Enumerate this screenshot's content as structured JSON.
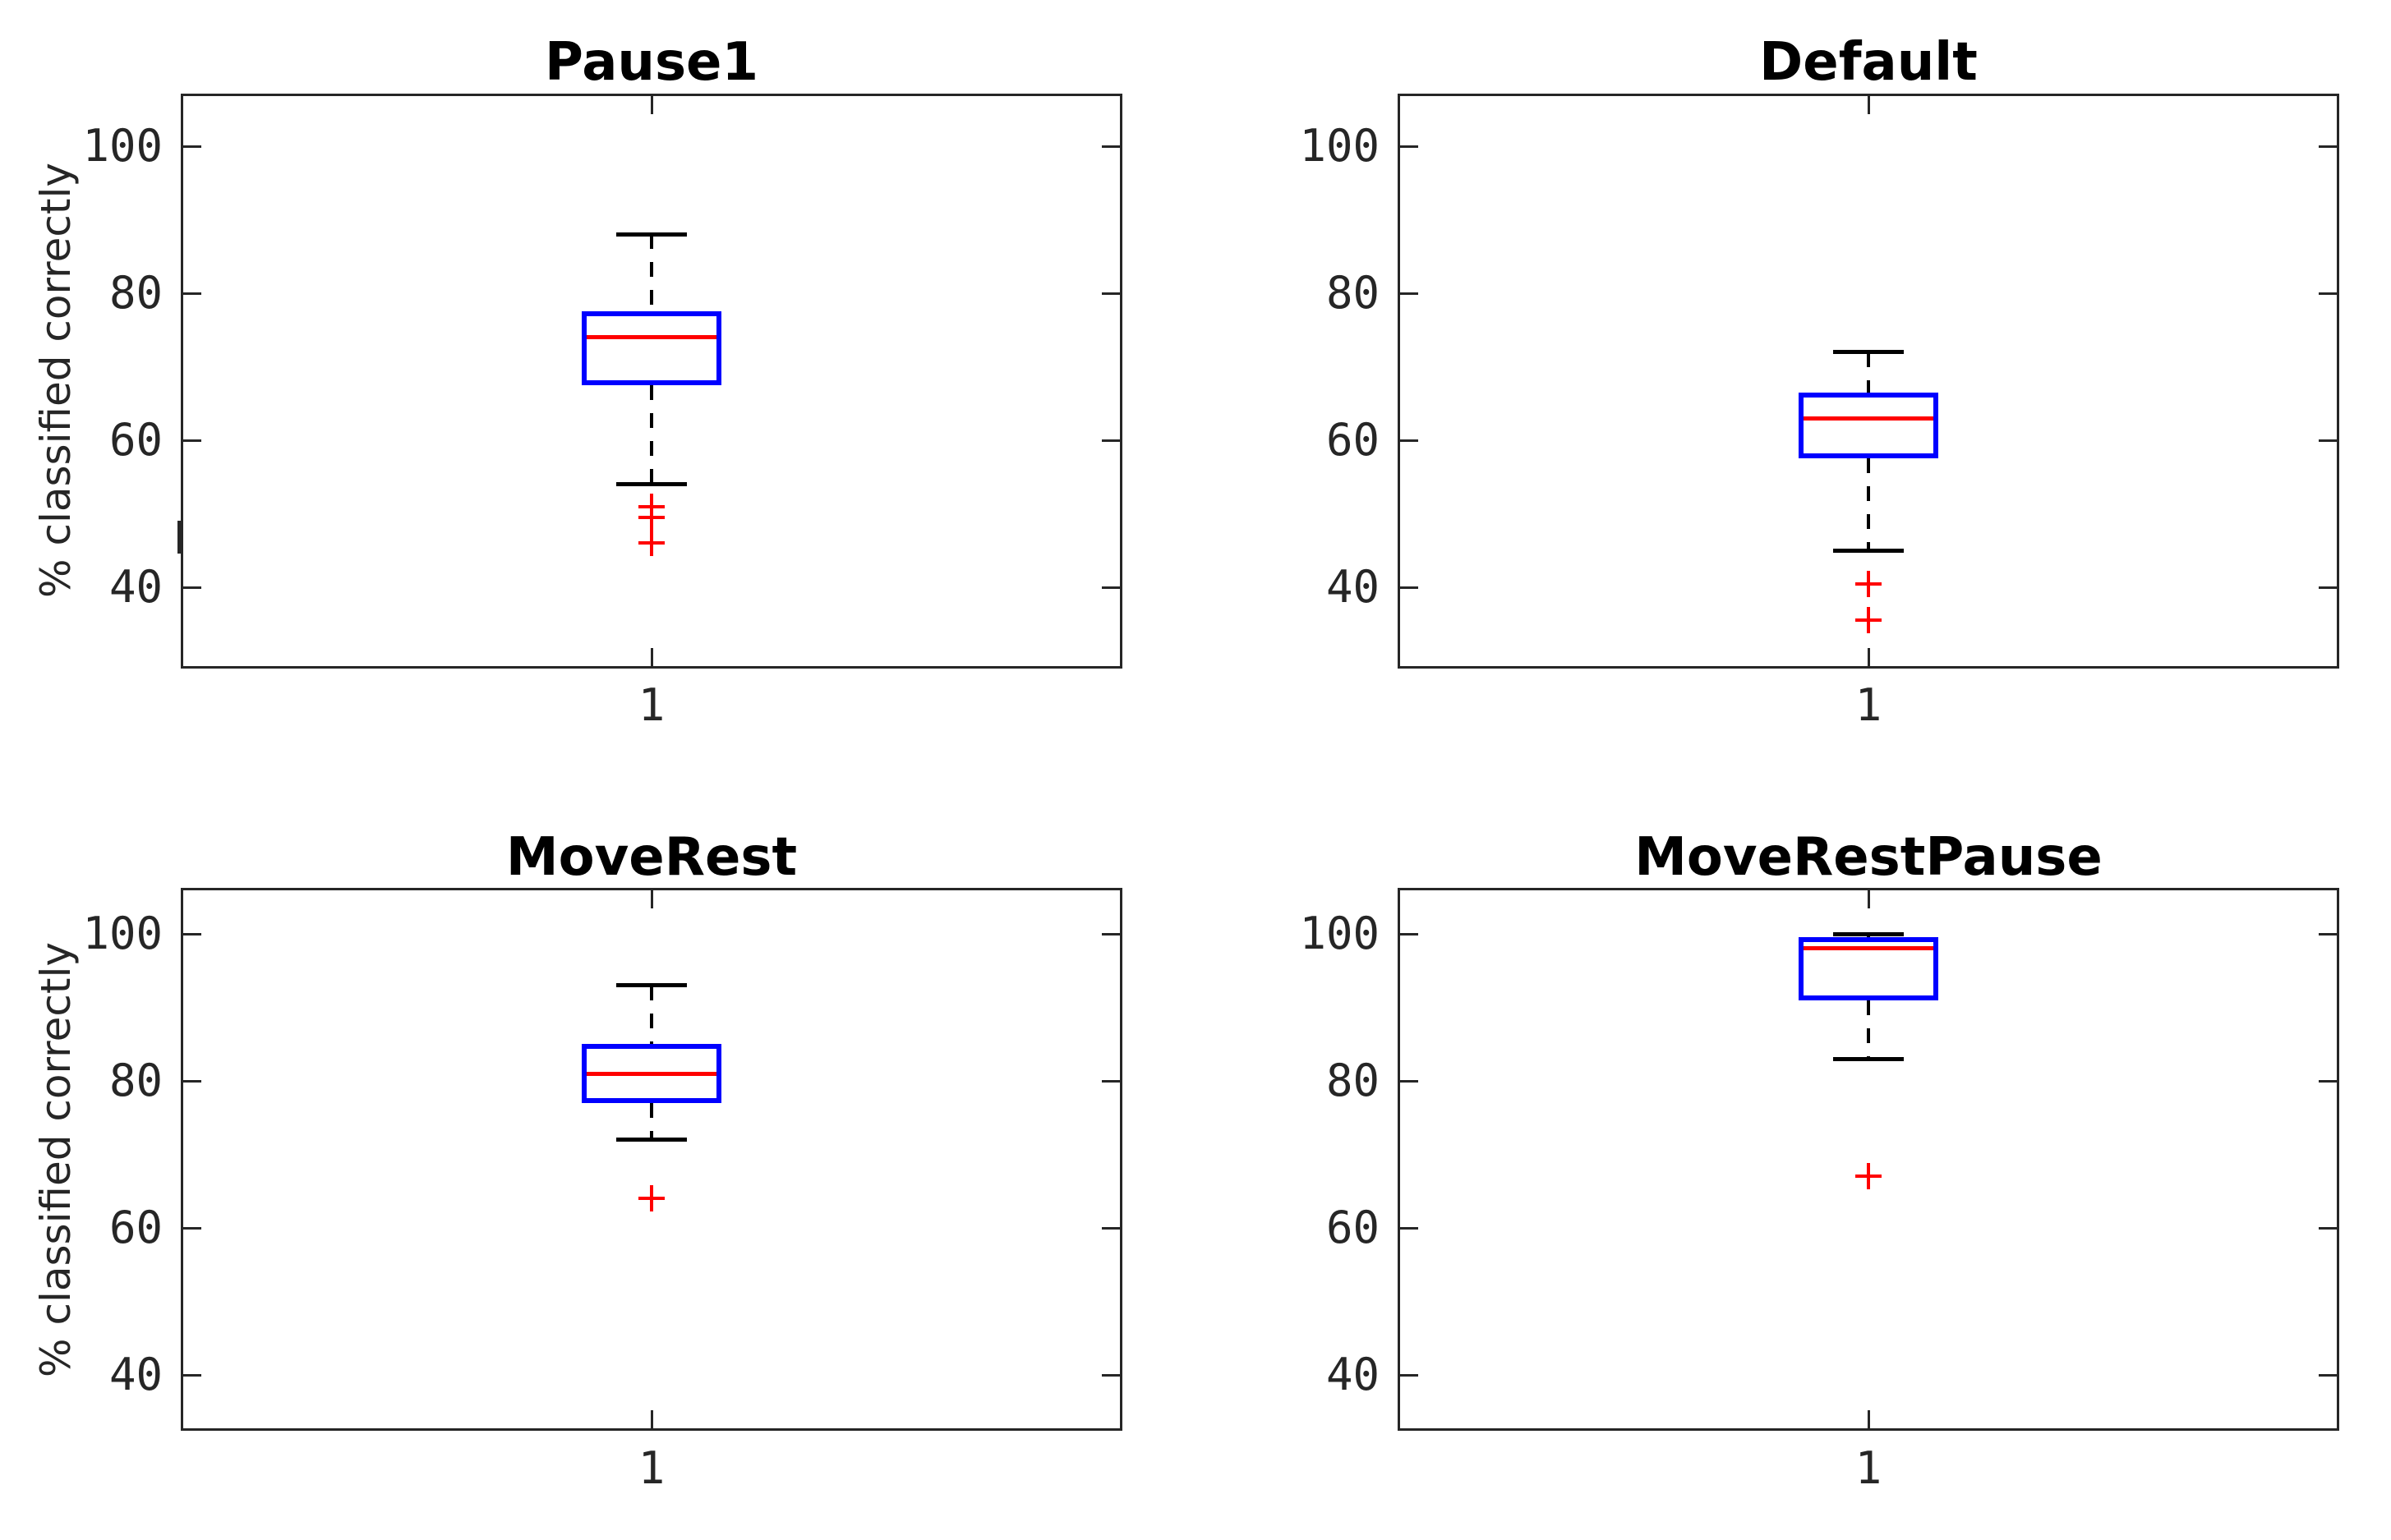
{
  "figure_title": "",
  "ylabel": "% classified correctly",
  "x_tick_label": "1",
  "y_ticks": [
    100,
    80,
    60,
    40
  ],
  "colors": {
    "box": "#0000ff",
    "median": "#ff0000",
    "outlier_marker": "#ff0000",
    "whisker": "#000000",
    "axis": "#262626",
    "title_text": "#000000",
    "background": "#ffffff"
  },
  "layout_hint": {
    "rows": 2,
    "cols": 2,
    "grid": "off",
    "legend": "none"
  },
  "chart_data": [
    {
      "type": "boxplot",
      "title": "Pause1",
      "x_category": "1",
      "whisker_high": 88,
      "q3": 77.5,
      "median": 74,
      "q1": 67.5,
      "whisker_low": 54,
      "outliers": [
        51,
        49.5,
        46
      ],
      "ylabel": "% classified correctly",
      "yticks": [
        40,
        60,
        80,
        100
      ],
      "ylim": [
        29,
        107
      ]
    },
    {
      "type": "boxplot",
      "title": "Default",
      "x_category": "1",
      "whisker_high": 72,
      "q3": 66.5,
      "median": 63,
      "q1": 57.5,
      "whisker_low": 45,
      "outliers": [
        40.5,
        35.5
      ],
      "ylabel": "",
      "yticks": [
        40,
        60,
        80,
        100
      ],
      "ylim": [
        29,
        107
      ]
    },
    {
      "type": "boxplot",
      "title": "MoveRest",
      "x_category": "1",
      "whisker_high": 93,
      "q3": 85,
      "median": 81,
      "q1": 77,
      "whisker_low": 72,
      "outliers": [
        64
      ],
      "ylabel": "% classified correctly",
      "yticks": [
        40,
        60,
        80,
        100
      ],
      "ylim": [
        32.5,
        106
      ]
    },
    {
      "type": "boxplot",
      "title": "MoveRestPause",
      "x_category": "1",
      "whisker_high": 100,
      "q3": 99.5,
      "median": 98,
      "q1": 91,
      "whisker_low": 83,
      "outliers": [
        67
      ],
      "ylabel": "",
      "yticks": [
        40,
        60,
        80,
        100
      ],
      "ylim": [
        32.5,
        106
      ]
    }
  ]
}
